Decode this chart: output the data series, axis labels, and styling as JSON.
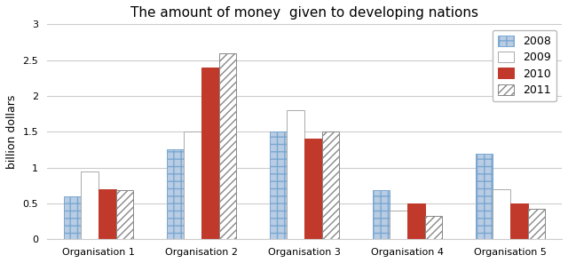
{
  "title": "The amount of money  given to developing nations",
  "ylabel": "billion dollars",
  "categories": [
    "Organisation 1",
    "Organisation 2",
    "Organisation 3",
    "Organisation 4",
    "Organisation 5"
  ],
  "years": [
    "2008",
    "2009",
    "2010",
    "2011"
  ],
  "values": {
    "2008": [
      0.6,
      1.25,
      1.5,
      0.68,
      1.2
    ],
    "2009": [
      0.95,
      1.5,
      1.8,
      0.4,
      0.7
    ],
    "2010": [
      0.7,
      2.4,
      1.4,
      0.5,
      0.5
    ],
    "2011": [
      0.68,
      2.6,
      1.5,
      0.33,
      0.43
    ]
  },
  "color_2008": "#b8cce4",
  "color_2009": "#ffffff",
  "color_2010": "#c0392b",
  "color_2011": "#ffffff",
  "edge_2008": "#7ba7d0",
  "edge_2009": "#aaaaaa",
  "edge_2010": "#c0392b",
  "edge_2011": "#888888",
  "hatch_2008": "++",
  "hatch_2011": "////",
  "ylim": [
    0,
    3
  ],
  "yticks": [
    0,
    0.5,
    1.0,
    1.5,
    2.0,
    2.5,
    3.0
  ],
  "ytick_labels": [
    "0",
    "0.5",
    "1",
    "1.5",
    "2",
    "2.5",
    "3"
  ],
  "bar_width": 0.17,
  "title_fontsize": 11,
  "axis_fontsize": 9,
  "tick_fontsize": 8,
  "legend_fontsize": 9,
  "grid_color": "#cccccc"
}
